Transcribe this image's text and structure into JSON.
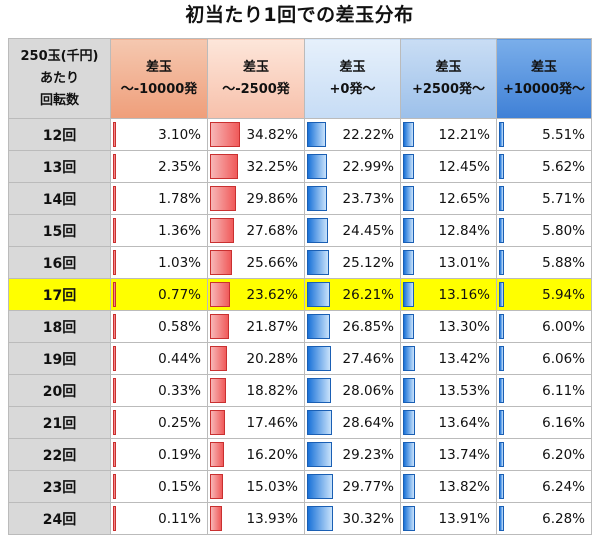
{
  "title": "初当たり1回での差玉分布",
  "corner": {
    "line1": "250玉(千円)",
    "line2": "あたり",
    "line3": "回転数"
  },
  "headers": [
    {
      "line1": "差玉",
      "line2": "～-10000発"
    },
    {
      "line1": "差玉",
      "line2": "～-2500発"
    },
    {
      "line1": "差玉",
      "line2": "+0発～"
    },
    {
      "line1": "差玉",
      "line2": "+2500発～"
    },
    {
      "line1": "差玉",
      "line2": "+10000発～"
    }
  ],
  "highlight_color": "#ffff00",
  "bar_colors": {
    "negative": "#f05a5a",
    "positive": "#1a72d8"
  },
  "rows": [
    {
      "label": "12回",
      "highlight": false,
      "values": [
        "3.10%",
        "34.82%",
        "22.22%",
        "12.21%",
        "5.51%"
      ]
    },
    {
      "label": "13回",
      "highlight": false,
      "values": [
        "2.35%",
        "32.25%",
        "22.99%",
        "12.45%",
        "5.62%"
      ]
    },
    {
      "label": "14回",
      "highlight": false,
      "values": [
        "1.78%",
        "29.86%",
        "23.73%",
        "12.65%",
        "5.71%"
      ]
    },
    {
      "label": "15回",
      "highlight": false,
      "values": [
        "1.36%",
        "27.68%",
        "24.45%",
        "12.84%",
        "5.80%"
      ]
    },
    {
      "label": "16回",
      "highlight": false,
      "values": [
        "1.03%",
        "25.66%",
        "25.12%",
        "13.01%",
        "5.88%"
      ]
    },
    {
      "label": "17回",
      "highlight": true,
      "values": [
        "0.77%",
        "23.62%",
        "26.21%",
        "13.16%",
        "5.94%"
      ]
    },
    {
      "label": "18回",
      "highlight": false,
      "values": [
        "0.58%",
        "21.87%",
        "26.85%",
        "13.30%",
        "6.00%"
      ]
    },
    {
      "label": "19回",
      "highlight": false,
      "values": [
        "0.44%",
        "20.28%",
        "27.46%",
        "13.42%",
        "6.06%"
      ]
    },
    {
      "label": "20回",
      "highlight": false,
      "values": [
        "0.33%",
        "18.82%",
        "28.06%",
        "13.53%",
        "6.11%"
      ]
    },
    {
      "label": "21回",
      "highlight": false,
      "values": [
        "0.25%",
        "17.46%",
        "28.64%",
        "13.64%",
        "6.16%"
      ]
    },
    {
      "label": "22回",
      "highlight": false,
      "values": [
        "0.19%",
        "16.20%",
        "29.23%",
        "13.74%",
        "6.20%"
      ]
    },
    {
      "label": "23回",
      "highlight": false,
      "values": [
        "0.15%",
        "15.03%",
        "29.77%",
        "13.82%",
        "6.24%"
      ]
    },
    {
      "label": "24回",
      "highlight": false,
      "values": [
        "0.11%",
        "13.93%",
        "30.32%",
        "13.91%",
        "6.28%"
      ]
    }
  ]
}
